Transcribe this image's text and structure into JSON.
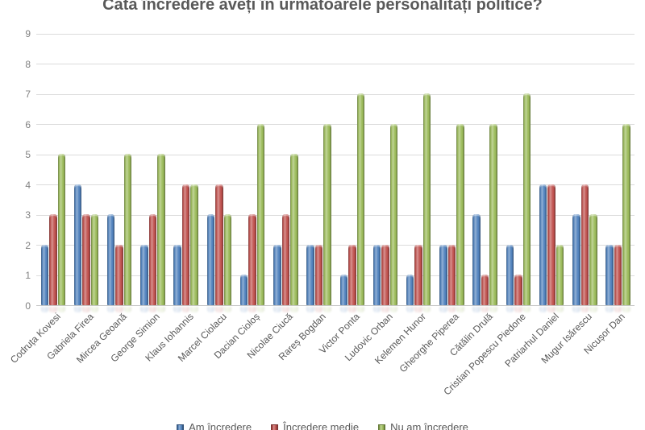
{
  "page": {
    "background": "#ffffff"
  },
  "chart_data": {
    "type": "bar",
    "title": "Câtă încredere aveți în următoarele personalități politice?",
    "categories": [
      "Codruța Kovesi",
      "Gabriela Firea",
      "Mircea Geoană",
      "George Simion",
      "Klaus Iohannis",
      "Marcel Ciolacu",
      "Dacian Cioloș",
      "Nicolae Ciucă",
      "Rareș Bogdan",
      "Victor Ponta",
      "Ludovic Orban",
      "Kelemen Hunor",
      "Gheorghe Piperea",
      "Cătălin Drulă",
      "Cristian Popescu Piedone",
      "Patriarhul Daniel",
      "Mugur Isărescu",
      "Nicușor Dan"
    ],
    "series": [
      {
        "name": "Am încredere",
        "color": "#4f81bd",
        "values": [
          2,
          4,
          3,
          2,
          2,
          3,
          1,
          2,
          2,
          1,
          2,
          1,
          2,
          3,
          2,
          4,
          3,
          2
        ]
      },
      {
        "name": "Încredere medie",
        "color": "#c0504d",
        "values": [
          3,
          3,
          2,
          3,
          4,
          4,
          3,
          3,
          2,
          2,
          2,
          2,
          2,
          1,
          1,
          4,
          4,
          2
        ]
      },
      {
        "name": "Nu am încredere",
        "color": "#9bbb59",
        "values": [
          5,
          3,
          5,
          5,
          4,
          3,
          6,
          5,
          6,
          7,
          6,
          7,
          6,
          6,
          7,
          2,
          3,
          6
        ]
      }
    ],
    "xlabel": "",
    "ylabel": "",
    "ylim": [
      0,
      9
    ],
    "yticks": [
      0,
      1,
      2,
      3,
      4,
      5,
      6,
      7,
      8,
      9
    ],
    "grid": true,
    "legend_position": "bottom",
    "styles": {
      "title_color": "#595959",
      "axis_tick_color": "#808080",
      "category_label_color": "#595959",
      "gridline_color": "#dcdcdc",
      "axis_line_color": "#c6c6c6",
      "legend_text_color": "#595959"
    }
  }
}
